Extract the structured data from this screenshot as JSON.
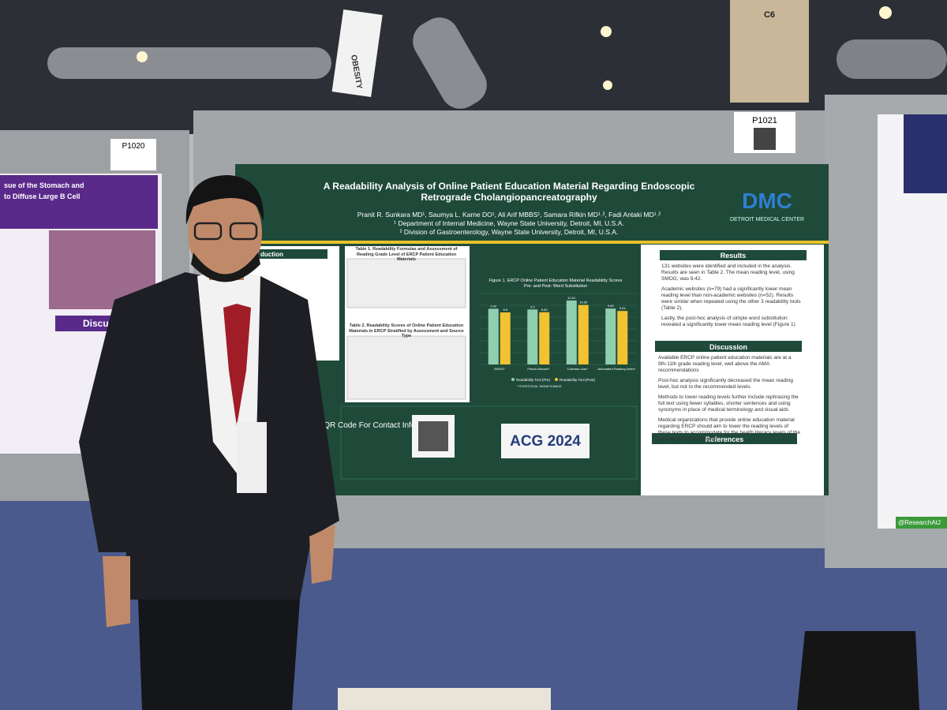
{
  "booths": [
    "P1020",
    "P1021"
  ],
  "hall_signs": {
    "banner": "OBESITY",
    "column": "C6"
  },
  "left_poster": {
    "title_lines": [
      "sue of the Stomach and",
      "to Diffuse Large B Cell"
    ],
    "heading": "Discu"
  },
  "right_poster": {
    "handle": "@ResearchAtJ"
  },
  "poster": {
    "title_lines": [
      "A Readability Analysis of Online Patient Education Material Regarding Endoscopic",
      "Retrograde Cholangiopancreatography"
    ],
    "authors": "Pranit R. Sunkara MD¹, Saumya L. Karne DO¹, Ali Arif MBBS¹, Samara Rifkin MD¹˒², Fadi Antaki MD¹˒²",
    "affiliations": [
      "¹ Department of Internal Medicine, Wayne State University, Detroit, MI, U.S.A.",
      "² Division of Gastroenterology, Wayne State University, Detroit, MI, U.S.A."
    ],
    "logo": {
      "mark": "DMC",
      "name": "DETROIT MEDICAL CENTER"
    },
    "intro_heading": "duction",
    "table1_caption": "Table 1. Readability Formulas and Assessment of Reading Grade Level of ERCP Patient Education Materials",
    "table2_caption": "Table 2. Readability Scores of Online Patient Education Materials in ERCP Stratified by Assessment and Source Type",
    "figure": {
      "type": "bar",
      "title_lines": [
        "Figure 1. ERCP Online Patient Education Material Readability Scores",
        "Pre- and Post- Word Substitution"
      ],
      "categories": [
        "SMOG*",
        "Flesch-Kincaid*",
        "Coleman-Liau*",
        "Automated Reading Index*"
      ],
      "series": [
        {
          "name": "Readability Tool (Pre)",
          "color": "#8fcfb0",
          "values": [
            9.42,
            9.3,
            10.81,
            9.45
          ]
        },
        {
          "name": "Readability Tool (Post)",
          "color": "#f2c230",
          "values": [
            8.8,
            8.83,
            10.06,
            9.04
          ]
        }
      ],
      "note": "* STATISTICAL SIGNIFICANCE",
      "ylim": [
        0,
        12
      ]
    },
    "qr_text": "QR Code For Contact Information",
    "conference": "ACG 2024",
    "results_heading": "Results",
    "results": [
      "131 websites were identified and included in the analysis. Results are seen in Table 2. The mean reading level, using SMOG, was 9.42.",
      "Academic websites (n=79) had a significantly lower mean reading level than non-academic websites (n=52). Results were similar when repeated using the other 3 readability tools (Table 2).",
      "Lastly, the post-hoc analysis of simple word substitution revealed a significantly lower mean reading level (Figure 1)"
    ],
    "discussion_heading": "Discussion",
    "discussion": [
      "Available ERCP online patient education materials are at a 9th-11th grade reading level, well above the AMA recommendations",
      "Post-hoc analysis significantly decreased the mean reading level, but not to the recommended levels",
      "Methods to lower reading levels further include rephrasing the full text using fewer syllables, shorter sentences and using synonyms in place of medical terminology and visual aids",
      "Medical organizations that provide online education material regarding ERCP should aim to lower the reading levels of these texts to accommodate for the health literacy levels of the general patient population"
    ],
    "references_heading": "References"
  }
}
